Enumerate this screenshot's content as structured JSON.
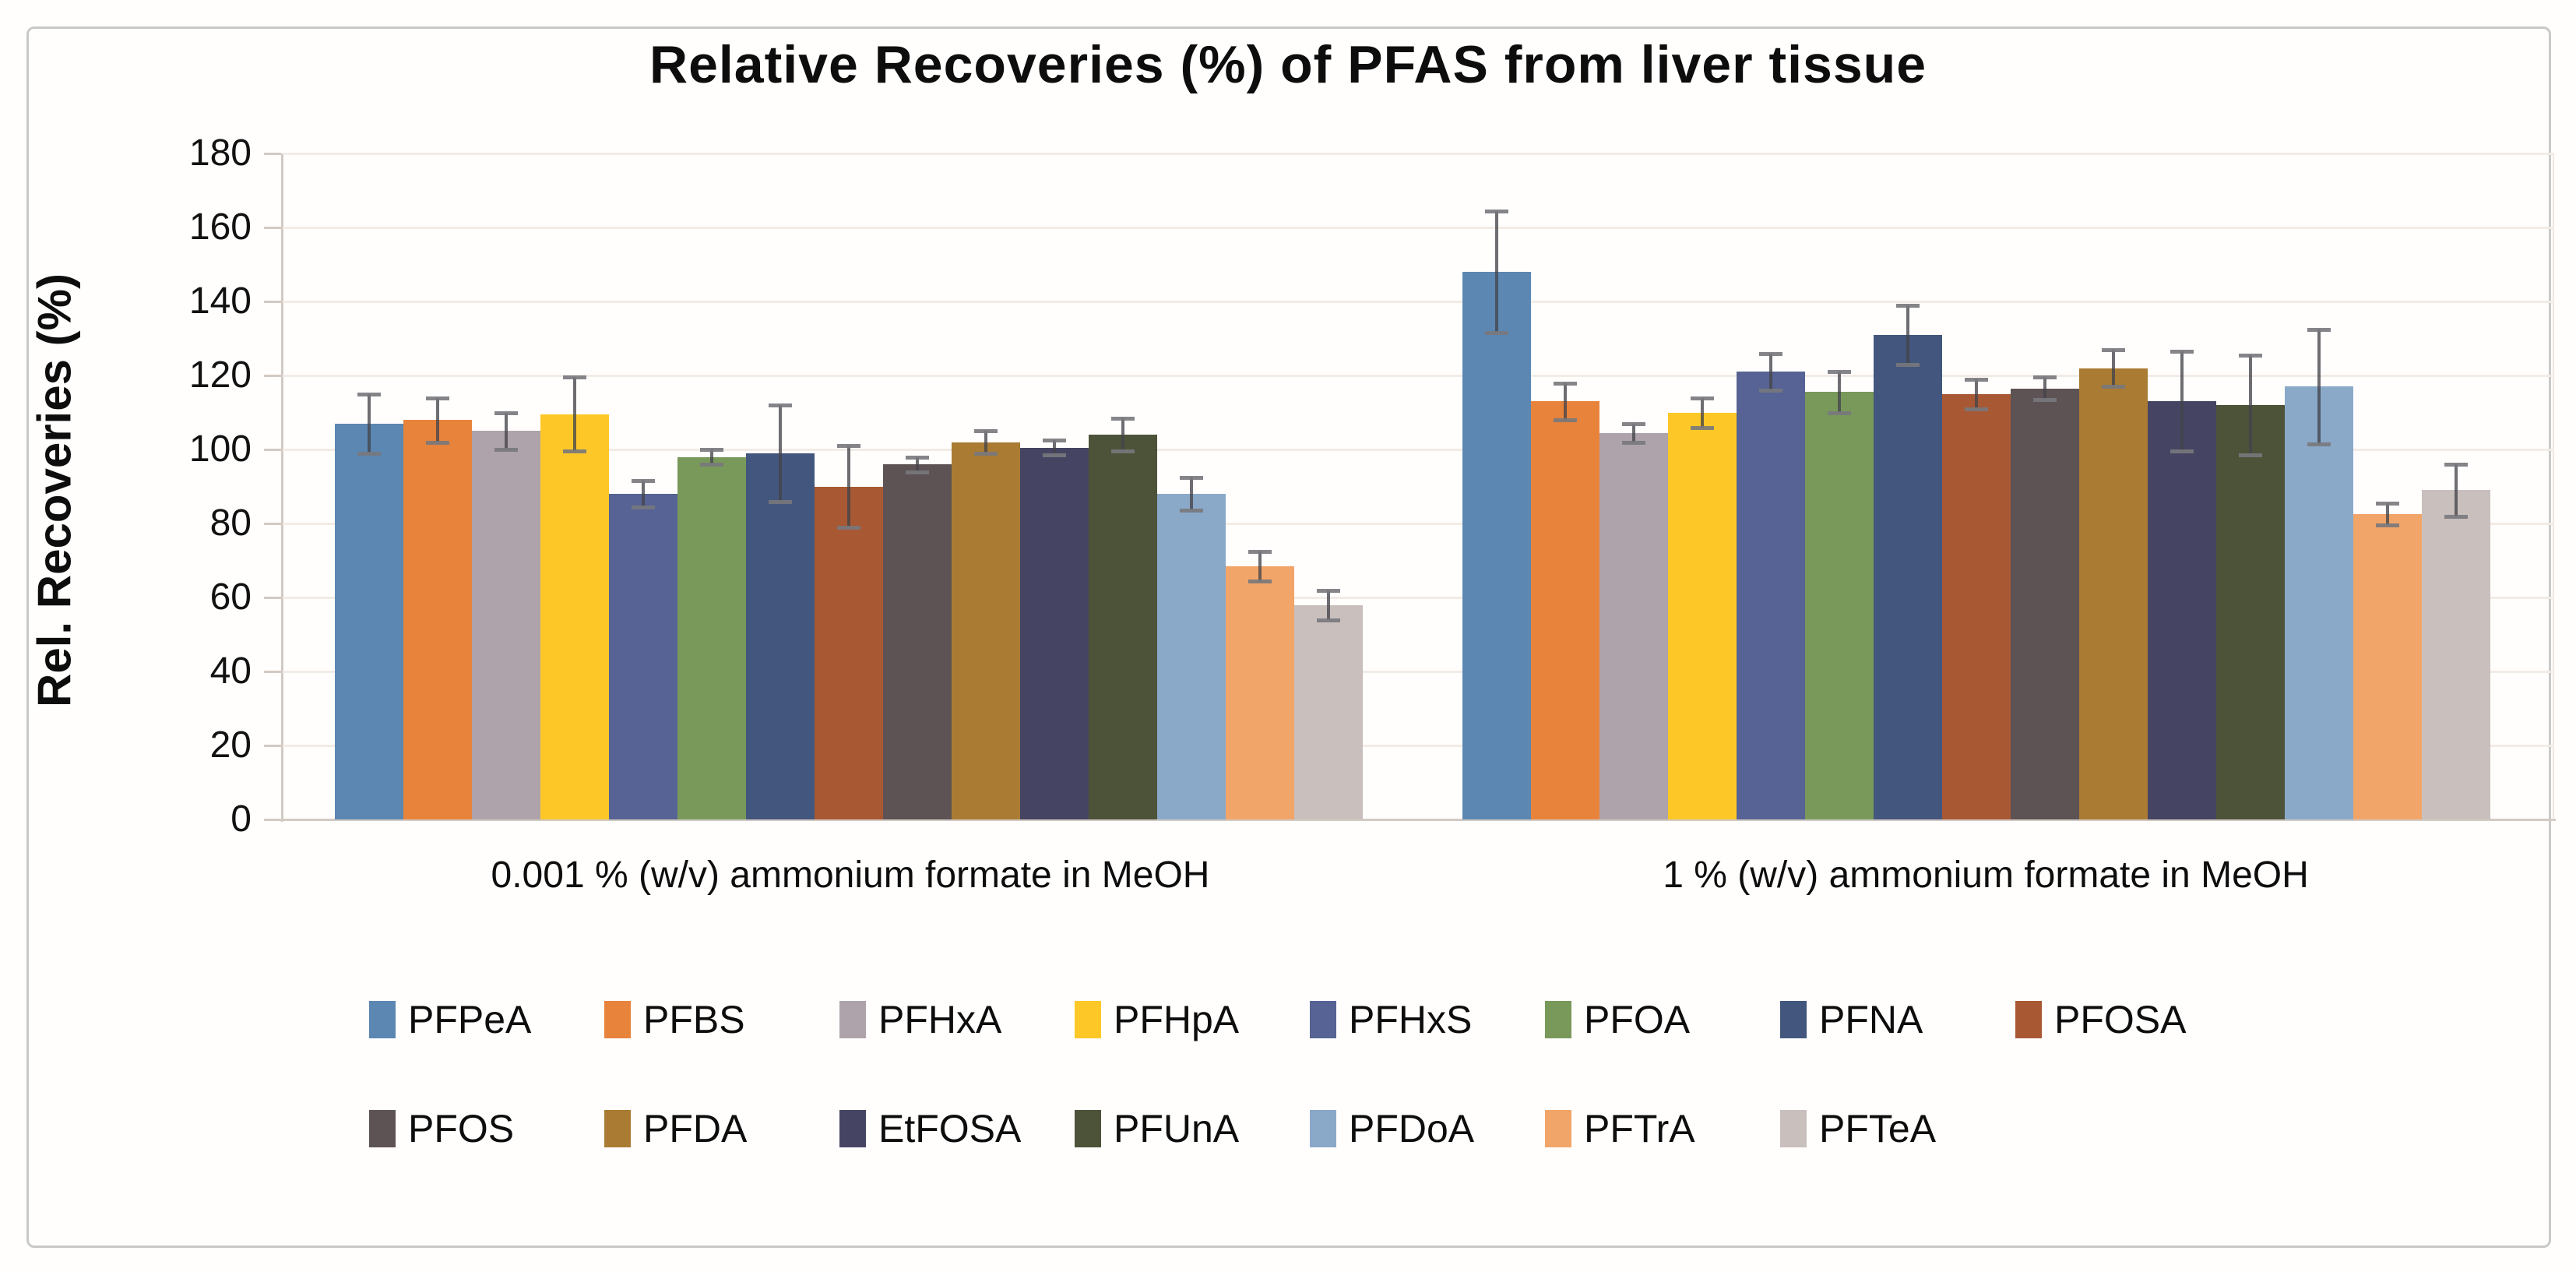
{
  "chart_data": {
    "type": "bar",
    "title": "Relative Recoveries (%) of PFAS from liver tissue",
    "ylabel": "Rel. Recoveries (%)",
    "xlabel": "",
    "ylim": [
      0,
      180
    ],
    "yticks": [
      0,
      20,
      40,
      60,
      80,
      100,
      120,
      140,
      160,
      180
    ],
    "grid": "horizontal",
    "legend_position": "bottom",
    "error_bars": true,
    "categories": [
      "0.001 % (w/v) ammonium formate in MeOH",
      "1 % (w/v) ammonium formate in MeOH"
    ],
    "groups": [
      {
        "label": "0.001 % (w/v) ammonium formate in MeOH"
      },
      {
        "label": "1 % (w/v) ammonium formate in MeOH"
      }
    ],
    "series": [
      {
        "name": "PFPeA",
        "color": "#5b87b2",
        "values": [
          107,
          148
        ],
        "errors": [
          8,
          16.5
        ]
      },
      {
        "name": "PFBS",
        "color": "#e8833c",
        "values": [
          108,
          113
        ],
        "errors": [
          6,
          5
        ]
      },
      {
        "name": "PFHxA",
        "color": "#aea3aa",
        "values": [
          105,
          104.5
        ],
        "errors": [
          5,
          2.5
        ]
      },
      {
        "name": "PFHpA",
        "color": "#fdc827",
        "values": [
          109.5,
          110
        ],
        "errors": [
          10,
          4
        ]
      },
      {
        "name": "PFHxS",
        "color": "#566394",
        "values": [
          88,
          121
        ],
        "errors": [
          3.5,
          5
        ]
      },
      {
        "name": "PFOA",
        "color": "#79995b",
        "values": [
          98,
          115.5
        ],
        "errors": [
          2,
          5.5
        ]
      },
      {
        "name": "PFNA",
        "color": "#43567d",
        "values": [
          99,
          131
        ],
        "errors": [
          13,
          8
        ]
      },
      {
        "name": "PFOSA",
        "color": "#a85832",
        "values": [
          90,
          115
        ],
        "errors": [
          11,
          4
        ]
      },
      {
        "name": "PFOS",
        "color": "#5d5355",
        "values": [
          96,
          116.5
        ],
        "errors": [
          2,
          3
        ]
      },
      {
        "name": "PFDA",
        "color": "#a97b33",
        "values": [
          102,
          122
        ],
        "errors": [
          3,
          5
        ]
      },
      {
        "name": "EtFOSA",
        "color": "#454563",
        "values": [
          100.5,
          113
        ],
        "errors": [
          2,
          13.5
        ]
      },
      {
        "name": "PFUnA",
        "color": "#4c5339",
        "values": [
          104,
          112
        ],
        "errors": [
          4.5,
          13.5
        ]
      },
      {
        "name": "PFDoA",
        "color": "#8aa9c9",
        "values": [
          88,
          117
        ],
        "errors": [
          4.5,
          15.5
        ]
      },
      {
        "name": "PFTrA",
        "color": "#f2a569",
        "values": [
          68.5,
          82.5
        ],
        "errors": [
          4,
          3
        ]
      },
      {
        "name": "PFTeA",
        "color": "#c9bfbc",
        "values": [
          58,
          89
        ],
        "errors": [
          4,
          7
        ]
      }
    ]
  }
}
